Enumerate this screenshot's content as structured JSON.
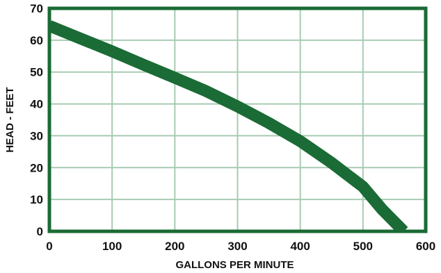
{
  "chart_data": {
    "type": "line",
    "title": "",
    "xlabel": "GALLONS PER MINUTE",
    "ylabel": "HEAD - FEET",
    "xlim": [
      0,
      600
    ],
    "ylim": [
      0,
      70
    ],
    "xticks": [
      "0",
      "100",
      "200",
      "300",
      "400",
      "500",
      "600"
    ],
    "yticks": [
      "0",
      "10",
      "20",
      "30",
      "40",
      "50",
      "60",
      "70"
    ],
    "grid": true,
    "legend": "none",
    "series": [
      {
        "x": [
          0,
          50,
          100,
          150,
          200,
          250,
          300,
          350,
          400,
          450,
          500,
          530,
          565
        ],
        "y": [
          64.5,
          60.5,
          56.5,
          52.3,
          48.2,
          44,
          39.2,
          34,
          28.3,
          21.5,
          14,
          7,
          0
        ]
      }
    ],
    "colors": {
      "frame": "#1a6b35",
      "curve": "#1a6b35",
      "grid": "#a7cbb2"
    }
  }
}
